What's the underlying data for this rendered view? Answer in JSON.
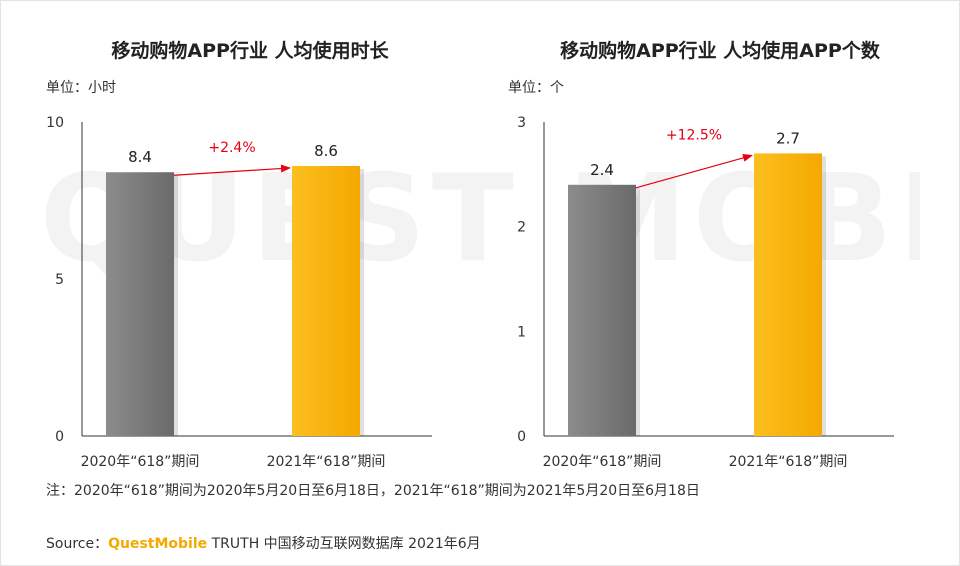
{
  "watermark": "QUEST MOBILE",
  "chart_data": [
    {
      "type": "bar",
      "title": "移动购物APP行业 人均使用时长",
      "unit_label": "单位：小时",
      "categories": [
        "2020年“618”期间",
        "2021年“618”期间"
      ],
      "values": [
        8.4,
        8.6
      ],
      "value_labels": [
        "8.4",
        "8.6"
      ],
      "y_ticks": [
        "0",
        "5",
        "10"
      ],
      "ylim": [
        0,
        10
      ],
      "colors": [
        "#7a7a7a",
        "#f9b000"
      ],
      "growth_label": "+2.4%",
      "grid": false
    },
    {
      "type": "bar",
      "title": "移动购物APP行业 人均使用APP个数",
      "unit_label": "单位：个",
      "categories": [
        "2020年“618”期间",
        "2021年“618”期间"
      ],
      "values": [
        2.4,
        2.7
      ],
      "value_labels": [
        "2.4",
        "2.7"
      ],
      "y_ticks": [
        "0",
        "1",
        "2",
        "3"
      ],
      "ylim": [
        0,
        3
      ],
      "colors": [
        "#7a7a7a",
        "#f9b000"
      ],
      "growth_label": "+12.5%",
      "grid": false
    }
  ],
  "note": "注：2020年“618”期间为2020年5月20日至6月18日，2021年“618”期间为2021年5月20日至6月18日",
  "source": {
    "prefix": "Source：",
    "brand": "QuestMobile",
    "suffix": "TRUTH 中国移动互联网数据库 2021年6月"
  },
  "accent_colors": {
    "growth_arrow": "#e60012",
    "brand": "#f4a900"
  }
}
